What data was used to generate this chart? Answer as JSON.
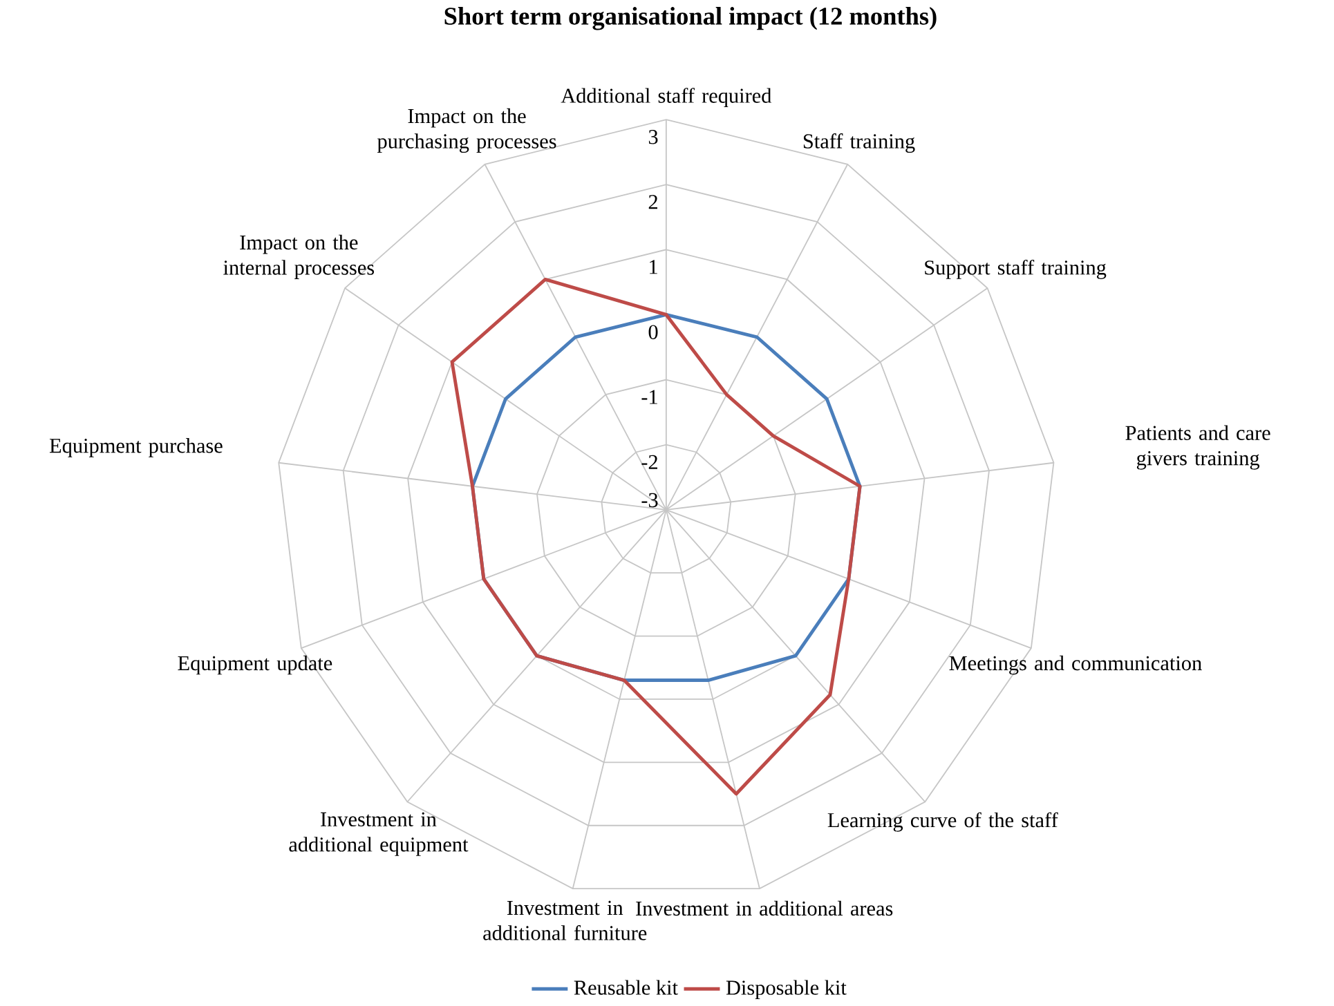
{
  "chart_data": {
    "type": "radar",
    "title": "Short term organisational impact (12 months)",
    "categories": [
      "Additional staff required",
      "Staff training",
      "Support staff training",
      "Patients and care givers training",
      "Meetings and communication",
      "Learning curve of the staff",
      "Investment in additional areas",
      "Investment in additional furniture",
      "Investment in additional equipment",
      "Equipment update",
      "Equipment purchase",
      "Impact on the internal processes",
      "Impact on the purchasing processes"
    ],
    "series": [
      {
        "name": "Reusable kit",
        "color": "#4a7ebb",
        "values": [
          0,
          0,
          0,
          0,
          0,
          0,
          -0.3,
          -0.3,
          0,
          0,
          0,
          0,
          0
        ]
      },
      {
        "name": "Disposable kit",
        "color": "#be4b48",
        "values": [
          0,
          -1,
          -1,
          0,
          0,
          0.8,
          1.5,
          -0.3,
          0,
          0,
          0,
          1,
          1
        ]
      }
    ],
    "ylim": [
      -3,
      3
    ],
    "yticks": [
      -3,
      -2,
      -1,
      0,
      1,
      2,
      3
    ],
    "grid": true,
    "legend": "bottom"
  }
}
